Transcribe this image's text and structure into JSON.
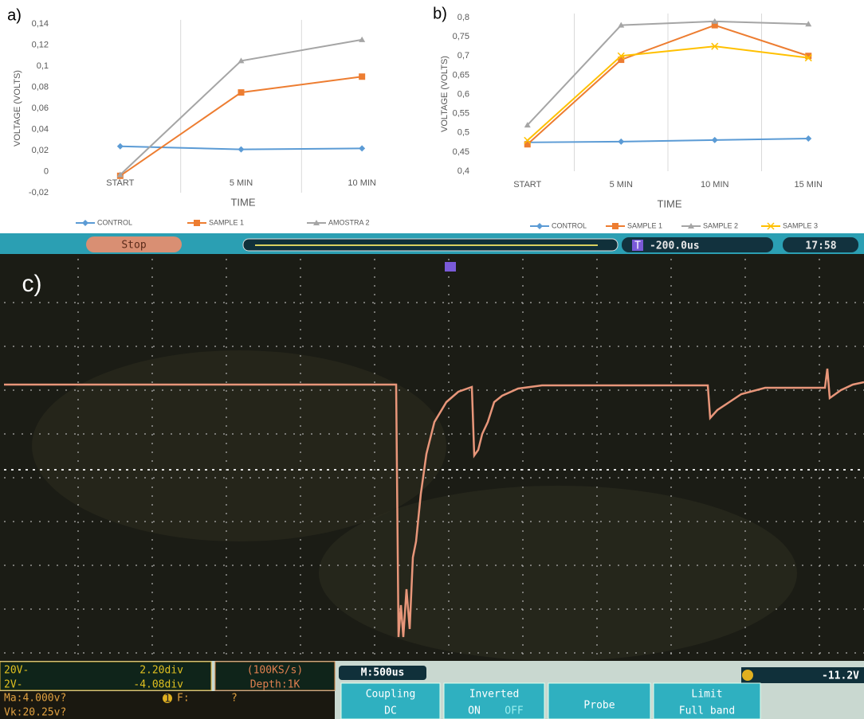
{
  "chart_data": [
    {
      "type": "line",
      "panel_label": "a)",
      "y_label": "VOLTAGE (VOLTS)",
      "x_label": "TIME",
      "categories": [
        "START",
        "5 MIN",
        "10 MIN"
      ],
      "series": [
        {
          "name": "CONTROL",
          "color": "#5b9bd5",
          "values": [
            0.024,
            0.021,
            0.022
          ]
        },
        {
          "name": "SAMPLE 1",
          "color": "#ed7d31",
          "values": [
            -0.004,
            0.075,
            0.09
          ]
        },
        {
          "name": "AMOSTRA 2",
          "color": "#a5a5a5",
          "values": [
            -0.003,
            0.105,
            0.125
          ]
        }
      ],
      "ylim": [
        -0.02,
        0.14
      ],
      "yticks": [
        {
          "value": -0.02,
          "label": "-0,02"
        },
        {
          "value": 0,
          "label": "0"
        },
        {
          "value": 0.02,
          "label": "0,02"
        },
        {
          "value": 0.04,
          "label": "0,04"
        },
        {
          "value": 0.06,
          "label": "0,06"
        },
        {
          "value": 0.08,
          "label": "0,08"
        },
        {
          "value": 0.1,
          "label": "0,1"
        },
        {
          "value": 0.12,
          "label": "0,12"
        },
        {
          "value": 0.14,
          "label": "0,14"
        }
      ],
      "legend": "bottom"
    },
    {
      "type": "line",
      "panel_label": "b)",
      "y_label": "VOLTAGE (VOLTS)",
      "x_label": "TIME",
      "categories": [
        "START",
        "5 MIN",
        "10 MIN",
        "15 MIN"
      ],
      "series": [
        {
          "name": "CONTROL",
          "color": "#5b9bd5",
          "values": [
            0.475,
            0.477,
            0.481,
            0.485
          ]
        },
        {
          "name": "SAMPLE 1",
          "color": "#ed7d31",
          "values": [
            0.47,
            0.69,
            0.78,
            0.7
          ]
        },
        {
          "name": "SAMPLE 2",
          "color": "#a5a5a5",
          "values": [
            0.52,
            0.78,
            0.79,
            0.783
          ]
        },
        {
          "name": "SAMPLE 3",
          "color": "#ffc000",
          "values": [
            0.48,
            0.7,
            0.725,
            0.695
          ]
        }
      ],
      "ylim": [
        0.4,
        0.8
      ],
      "yticks": [
        {
          "value": 0.4,
          "label": "0,4"
        },
        {
          "value": 0.45,
          "label": "0,45"
        },
        {
          "value": 0.5,
          "label": "0,5"
        },
        {
          "value": 0.55,
          "label": "0,55"
        },
        {
          "value": 0.6,
          "label": "0,6"
        },
        {
          "value": 0.65,
          "label": "0,65"
        },
        {
          "value": 0.7,
          "label": "0,7"
        },
        {
          "value": 0.75,
          "label": "0,75"
        },
        {
          "value": 0.8,
          "label": "0,8"
        }
      ],
      "legend": "bottom"
    }
  ],
  "scope": {
    "panel_label": "c)",
    "status": "Stop",
    "trigger_icon": "T",
    "trigger_offset": "-200.0us",
    "clock": "17:58",
    "ch1_scale": "20V-",
    "ch1_pos": "2.20div",
    "sample_rate": "(100KS/s)",
    "depth": "Depth:1K",
    "ch2_scale": "2V-",
    "ch2_pos": "-4.08div",
    "meas1": "Ma:4.000v?",
    "channel_icon": "1",
    "freq_label": "F:",
    "freq_value": "?",
    "meas2": "Vk:20.25v?",
    "timebase": "M:500us",
    "trigger_level": "-11.2V",
    "menu": [
      {
        "title": "Coupling",
        "options": [
          "DC"
        ]
      },
      {
        "title": "Inverted",
        "options": [
          "ON",
          "OFF"
        ]
      },
      {
        "title": "Probe"
      },
      {
        "title": "Limit",
        "options": [
          "Full band"
        ]
      }
    ]
  }
}
